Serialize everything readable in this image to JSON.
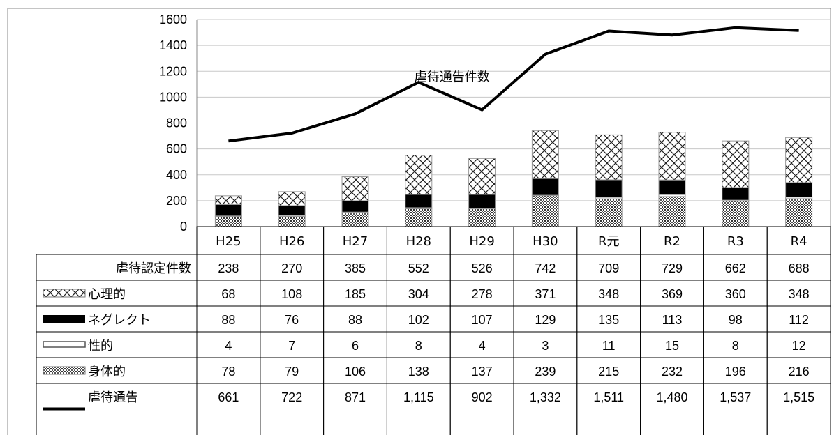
{
  "chart_data": {
    "type": "bar",
    "categories": [
      "H25",
      "H26",
      "H27",
      "H28",
      "H29",
      "H30",
      "R元",
      "R2",
      "R3",
      "R4"
    ],
    "y_ticks": [
      "0",
      "200",
      "400",
      "600",
      "800",
      "1000",
      "1200",
      "1400",
      "1600"
    ],
    "ylim": [
      0,
      1600
    ],
    "grid": true,
    "stacked": true,
    "line_annotation": "虐待通告件数",
    "series": [
      {
        "key": "physical",
        "name": "身体的",
        "type": "bar",
        "pattern": "dots",
        "values": [
          78,
          79,
          106,
          138,
          137,
          239,
          215,
          232,
          196,
          216
        ]
      },
      {
        "key": "sexual",
        "name": "性的",
        "type": "bar",
        "pattern": "double-line",
        "values": [
          4,
          7,
          6,
          8,
          4,
          3,
          11,
          15,
          8,
          12
        ]
      },
      {
        "key": "neglect",
        "name": "ネグレクト",
        "type": "bar",
        "pattern": "solid",
        "values": [
          88,
          76,
          88,
          102,
          107,
          129,
          135,
          113,
          98,
          112
        ]
      },
      {
        "key": "psychological",
        "name": "心理的",
        "type": "bar",
        "pattern": "crosshatch",
        "values": [
          68,
          108,
          185,
          304,
          278,
          371,
          348,
          369,
          360,
          348
        ]
      },
      {
        "key": "reports",
        "name": "虐待通告",
        "type": "line",
        "values": [
          661,
          722,
          871,
          1115,
          902,
          1332,
          1511,
          1480,
          1537,
          1515
        ]
      }
    ],
    "table": {
      "rows": [
        {
          "label": "虐待認定件数",
          "legend": "none",
          "cells": [
            "238",
            "270",
            "385",
            "552",
            "526",
            "742",
            "709",
            "729",
            "662",
            "688"
          ]
        },
        {
          "label": "心理的",
          "legend": "crosshatch",
          "cells": [
            "68",
            "108",
            "185",
            "304",
            "278",
            "371",
            "348",
            "369",
            "360",
            "348"
          ]
        },
        {
          "label": "ネグレクト",
          "legend": "solid",
          "cells": [
            "88",
            "76",
            "88",
            "102",
            "107",
            "129",
            "135",
            "113",
            "98",
            "112"
          ]
        },
        {
          "label": "性的",
          "legend": "double-line",
          "cells": [
            "4",
            "7",
            "6",
            "8",
            "4",
            "3",
            "11",
            "15",
            "8",
            "12"
          ]
        },
        {
          "label": "身体的",
          "legend": "dots",
          "cells": [
            "78",
            "79",
            "106",
            "138",
            "137",
            "239",
            "215",
            "232",
            "196",
            "216"
          ]
        },
        {
          "label": "虐待通告",
          "legend": "line",
          "cells": [
            "661",
            "722",
            "871",
            "1,115",
            "902",
            "1,332",
            "1,511",
            "1,480",
            "1,537",
            "1,515"
          ]
        }
      ]
    }
  }
}
